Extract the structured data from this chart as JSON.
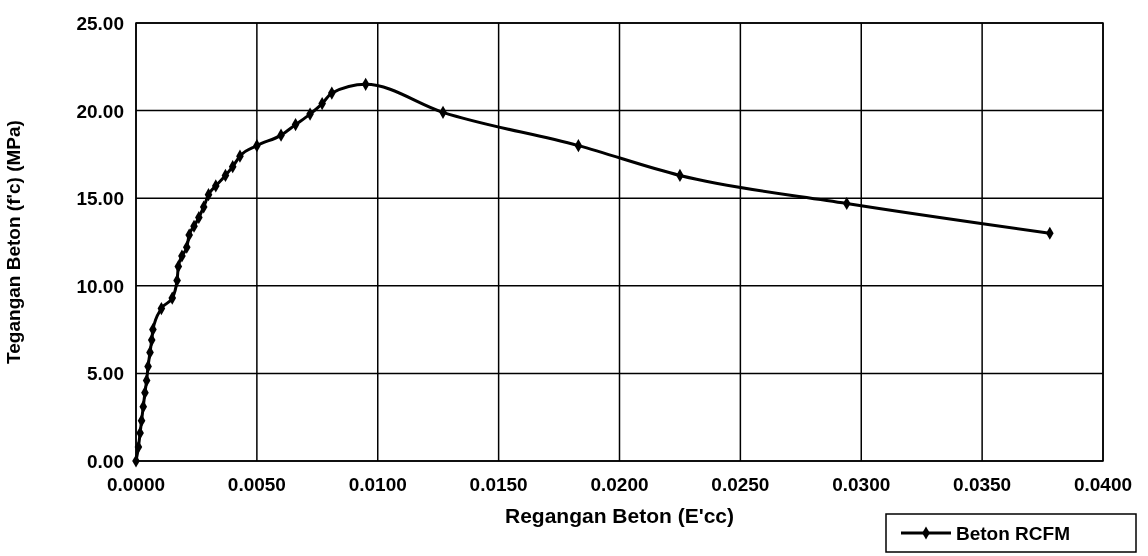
{
  "chart_data": {
    "type": "line",
    "xlabel": "Regangan Beton (E'cc)",
    "ylabel": "Tegangan Beton (f'c) (MPa)",
    "xlim": [
      0,
      0.04
    ],
    "xticks": [
      {
        "value": 0,
        "label": "0.0000"
      },
      {
        "value": 0.005,
        "label": "0.0050"
      },
      {
        "value": 0.01,
        "label": "0.0100"
      },
      {
        "value": 0.015,
        "label": "0.0150"
      },
      {
        "value": 0.02,
        "label": "0.0200"
      },
      {
        "value": 0.025,
        "label": "0.0250"
      },
      {
        "value": 0.03,
        "label": "0.0300"
      },
      {
        "value": 0.035,
        "label": "0.0350"
      },
      {
        "value": 0.04,
        "label": "0.0400"
      }
    ],
    "ylim": [
      0,
      25
    ],
    "yticks": [
      {
        "value": 0,
        "label": "0.00"
      },
      {
        "value": 5,
        "label": "5.00"
      },
      {
        "value": 10,
        "label": "10.00"
      },
      {
        "value": 15,
        "label": "15.00"
      },
      {
        "value": 20,
        "label": "20.00"
      },
      {
        "value": 25,
        "label": "25.00"
      }
    ],
    "grid": true,
    "legend": "bottom right",
    "marker": "diamond",
    "line_style": "solid",
    "series": [
      {
        "name": "Beton RCFM",
        "color": "#000000",
        "x": [
          0,
          0.0001,
          0.00017,
          0.00023,
          0.0003,
          0.00037,
          0.00044,
          0.0005,
          0.00058,
          0.00065,
          0.0007,
          0.00105,
          0.0015,
          0.0017,
          0.00175,
          0.0019,
          0.0021,
          0.0022,
          0.0024,
          0.0026,
          0.0028,
          0.003,
          0.0033,
          0.0037,
          0.004,
          0.0043,
          0.005,
          0.006,
          0.0066,
          0.0072,
          0.0077,
          0.0081,
          0.0095,
          0.0127,
          0.0183,
          0.0225,
          0.0294,
          0.0378
        ],
        "values": [
          0,
          0.8,
          1.6,
          2.3,
          3.1,
          3.9,
          4.6,
          5.4,
          6.2,
          6.9,
          7.5,
          8.7,
          9.3,
          10.3,
          11.1,
          11.7,
          12.2,
          12.9,
          13.4,
          13.9,
          14.5,
          15.2,
          15.7,
          16.3,
          16.8,
          17.4,
          18.0,
          18.6,
          19.2,
          19.8,
          20.4,
          21.0,
          21.5,
          19.9,
          18.0,
          16.3,
          14.7,
          13.0
        ]
      }
    ]
  }
}
